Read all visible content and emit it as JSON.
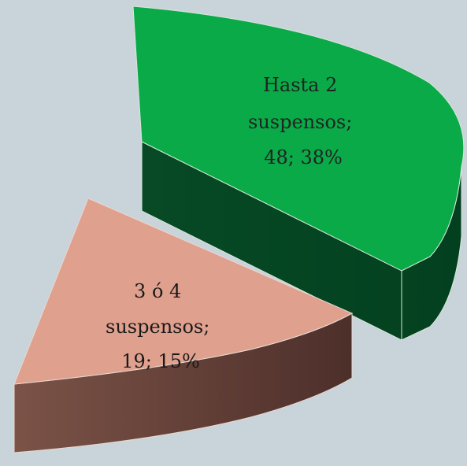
{
  "chart_data": {
    "type": "pie",
    "style": "3d-exploded",
    "slices": [
      {
        "name": "Hasta 2 suspensos",
        "value": 48,
        "percent": 38,
        "label_lines": [
          "Hasta 2",
          "suspensos;",
          "48; 38%"
        ],
        "color": "#0aaa48",
        "side_color": "#05542a",
        "text_color": "#222222"
      },
      {
        "name": "3 ó 4 suspensos",
        "value": 19,
        "percent": 15,
        "label_lines": [
          "3 ó 4",
          "suspensos;",
          "19; 15%"
        ],
        "color": "#e0a08e",
        "side_color": "#5c3a33",
        "text_color": "#1a1a1a"
      }
    ],
    "legend": "none"
  }
}
